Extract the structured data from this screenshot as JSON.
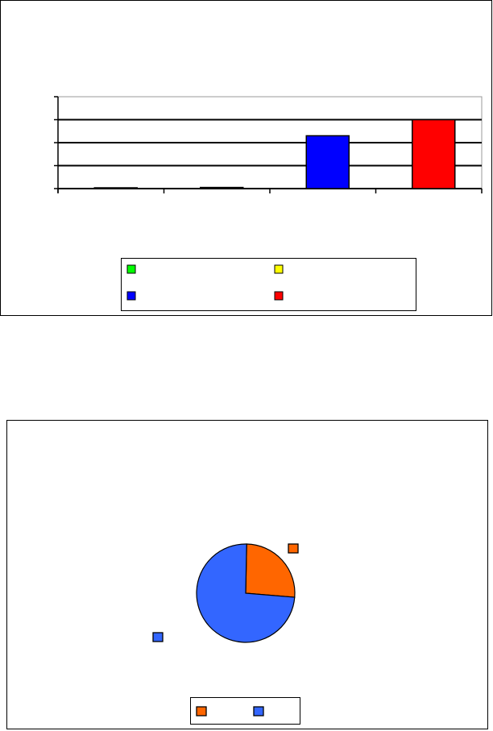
{
  "chart_data": [
    {
      "type": "bar",
      "categories": [
        "",
        "",
        "",
        ""
      ],
      "series": [
        {
          "color": "#00ff00",
          "values": [
            0,
            null,
            null,
            null
          ]
        },
        {
          "color": "#ffff00",
          "values": [
            null,
            0.05,
            null,
            null
          ]
        },
        {
          "color": "#0000ff",
          "values": [
            null,
            null,
            2.3,
            null
          ]
        },
        {
          "color": "#ff0000",
          "values": [
            null,
            null,
            null,
            3.0
          ]
        }
      ],
      "ylim": [
        0,
        4
      ],
      "grid": true,
      "legend": "bottom",
      "title": "",
      "xlabel": "",
      "ylabel": ""
    },
    {
      "type": "pie",
      "slices": [
        {
          "color": "#ff6600",
          "value": 26
        },
        {
          "color": "#3366ff",
          "value": 74
        }
      ],
      "legend": "bottom",
      "title": ""
    }
  ]
}
